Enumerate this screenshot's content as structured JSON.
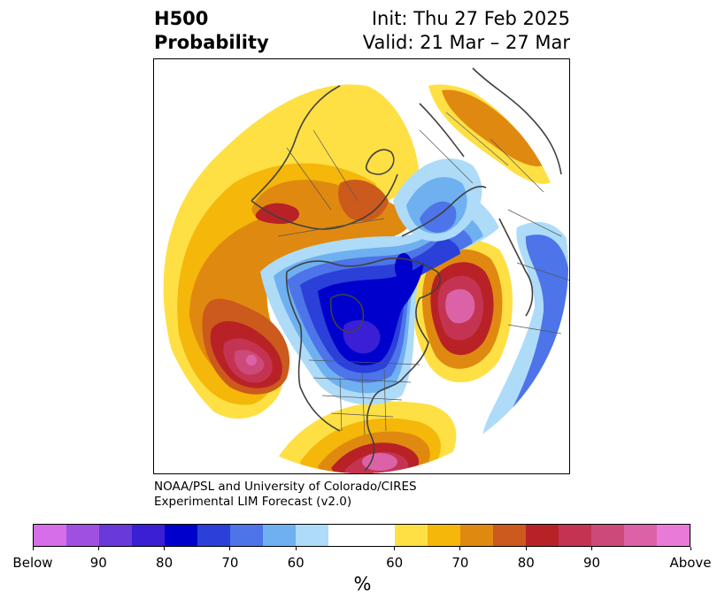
{
  "header": {
    "variable": "H500",
    "product": "Probability",
    "init": "Init: Thu 27 Feb 2025",
    "valid": "Valid: 21 Mar – 27 Mar"
  },
  "credit": {
    "line1": "NOAA/PSL and University of Colorado/CIRES",
    "line2": "Experimental LIM Forecast (v2.0)"
  },
  "colorbar": {
    "unit": "%",
    "tick_labels": [
      "Below",
      "90",
      "80",
      "70",
      "60",
      "60",
      "70",
      "80",
      "90",
      "Above"
    ],
    "below_colors": [
      "#d56ee8",
      "#a050e0",
      "#6a39da",
      "#3a1fd4",
      "#0000cd",
      "#2a40d8",
      "#4d74e8",
      "#6fb0f0",
      "#aedbf8"
    ],
    "neutral_color": "#ffffff",
    "above_colors": [
      "#fee045",
      "#f4b70a",
      "#e08910",
      "#cc5a1c",
      "#b82226",
      "#c43452",
      "#cc4a7a",
      "#dc62a8",
      "#e97ad8"
    ]
  },
  "map": {
    "projection": "north-polar-stereographic",
    "boundaries": "continents, countries, US states"
  }
}
